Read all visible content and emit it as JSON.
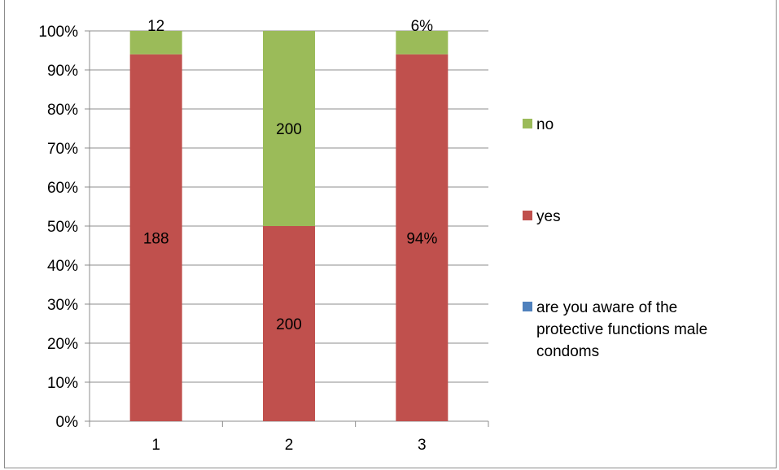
{
  "chart_data": {
    "type": "bar",
    "stacked": "percent",
    "categories": [
      "1",
      "2",
      "3"
    ],
    "series": [
      {
        "name": "are you aware of the protective functions male condoms",
        "color": "#4f81bd",
        "values": [
          0,
          0,
          0
        ],
        "labels": [
          "",
          "",
          ""
        ]
      },
      {
        "name": "yes",
        "color": "#c0504d",
        "values": [
          94,
          50,
          94
        ],
        "labels": [
          "188",
          "200",
          "94%"
        ]
      },
      {
        "name": "no",
        "color": "#9bbb59",
        "values": [
          6,
          50,
          6
        ],
        "labels": [
          "12",
          "200",
          "6%"
        ]
      }
    ],
    "y_ticks": [
      "0%",
      "10%",
      "20%",
      "30%",
      "40%",
      "50%",
      "60%",
      "70%",
      "80%",
      "90%",
      "100%"
    ],
    "ylim": [
      0,
      100
    ],
    "grid": true,
    "legend_position": "right",
    "legend": [
      {
        "label": "no",
        "color": "#9bbb59",
        "lines": [
          "no"
        ]
      },
      {
        "label": "yes",
        "color": "#c0504d",
        "lines": [
          "yes"
        ]
      },
      {
        "label": "are you aware of the protective functions male condoms",
        "color": "#4f81bd",
        "lines": [
          "are you aware of the",
          "protective functions male",
          "condoms"
        ]
      }
    ]
  }
}
